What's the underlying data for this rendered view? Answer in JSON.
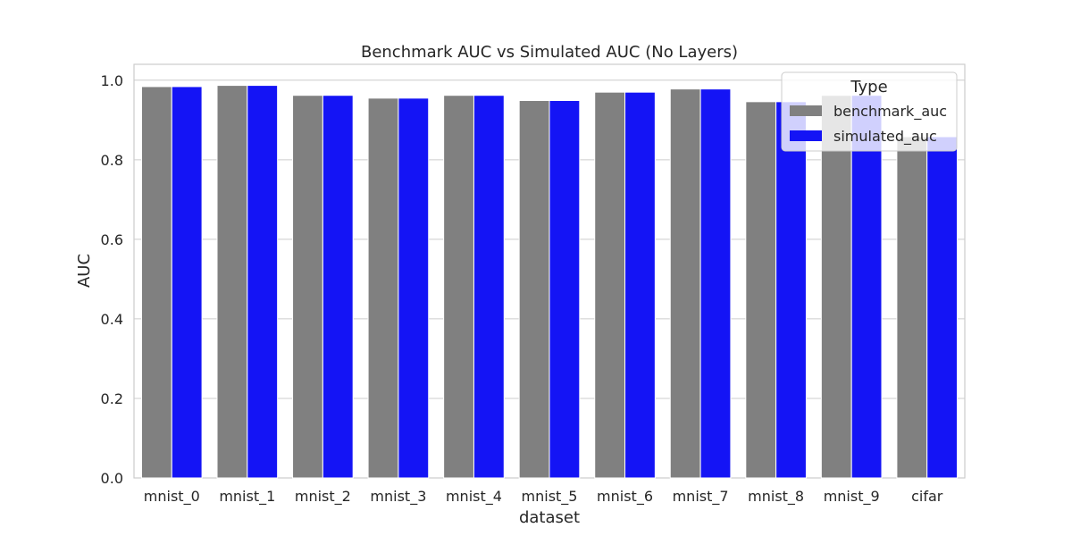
{
  "chart_data": {
    "type": "bar",
    "title": "Benchmark AUC vs Simulated AUC (No Layers)",
    "xlabel": "dataset",
    "ylabel": "AUC",
    "ylim": [
      0,
      1.04
    ],
    "yticks": [
      0.0,
      0.2,
      0.4,
      0.6,
      0.8,
      1.0
    ],
    "ytick_labels": [
      "0.0",
      "0.2",
      "0.4",
      "0.6",
      "0.8",
      "1.0"
    ],
    "categories": [
      "mnist_0",
      "mnist_1",
      "mnist_2",
      "mnist_3",
      "mnist_4",
      "mnist_5",
      "mnist_6",
      "mnist_7",
      "mnist_8",
      "mnist_9",
      "cifar"
    ],
    "series": [
      {
        "name": "benchmark_auc",
        "color": "#808080",
        "values": [
          0.984,
          0.987,
          0.962,
          0.955,
          0.962,
          0.949,
          0.97,
          0.978,
          0.946,
          0.962,
          0.858
        ]
      },
      {
        "name": "simulated_auc",
        "color": "#1414f5",
        "values": [
          0.984,
          0.987,
          0.962,
          0.955,
          0.962,
          0.949,
          0.97,
          0.978,
          0.946,
          0.962,
          0.858
        ]
      }
    ],
    "legend": {
      "title": "Type",
      "placement": "top-right"
    },
    "grid": true
  }
}
